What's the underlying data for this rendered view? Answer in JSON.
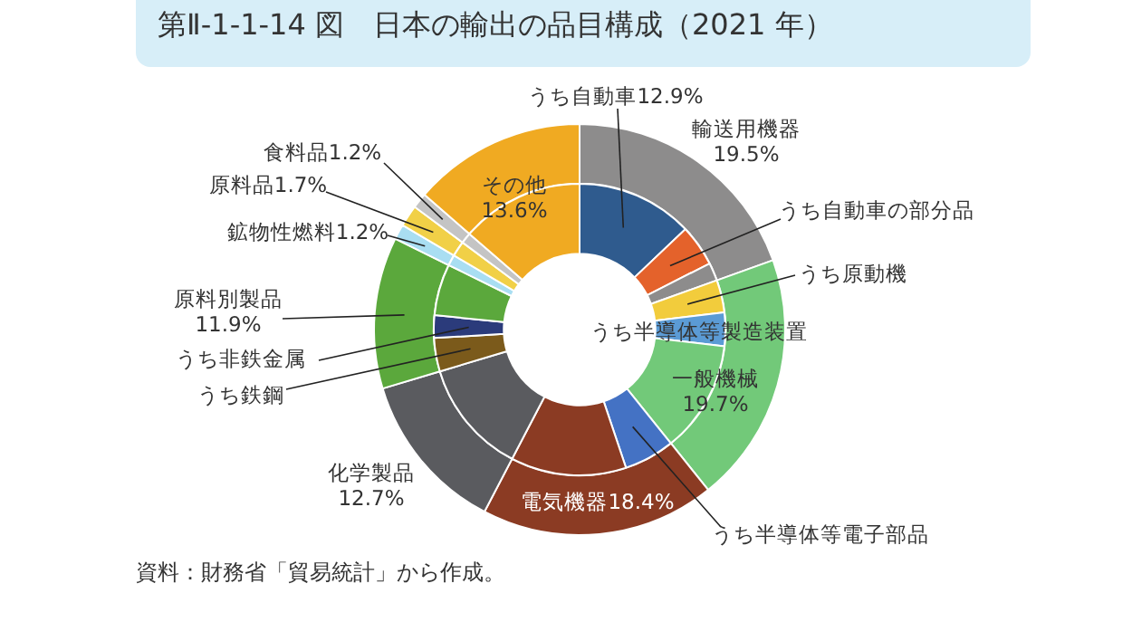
{
  "chart_data": [
    {
      "type": "donut",
      "title": "第Ⅱ-1-1-14 図　日本の輸出の品目構成（2021 年）",
      "annotations": [
        "資料：財務省「貿易統計」から作成。"
      ],
      "categories": [
        "輸送用機器",
        "一般機械",
        "電気機器",
        "化学製品",
        "原料別製品",
        "鉱物性燃料",
        "原料品",
        "食料品",
        "その他"
      ],
      "values": [
        19.5,
        19.7,
        18.4,
        12.7,
        11.9,
        1.2,
        1.7,
        1.2,
        13.6
      ],
      "value_labels": [
        "19.5%",
        "19.7%",
        "18.4%",
        "12.7%",
        "11.9%",
        "1.2%",
        "1.7%",
        "1.2%",
        "13.6%"
      ],
      "colors": [
        "#8d8c8c",
        "#72c979",
        "#8b3b23",
        "#5a5b5f",
        "#5ba83c",
        "#a9def2",
        "#f1d047",
        "#c4c4c4",
        "#f0aa22"
      ]
    },
    {
      "type": "donut",
      "categories": [
        "うち自動車",
        "うち自動車の部分品",
        null,
        "うち原動機",
        "うち半導体等製造装置",
        null,
        "うち半導体等電子部品",
        null,
        null,
        "うち鉄鋼",
        "うち非鉄金属",
        null,
        null,
        null,
        null,
        null
      ],
      "values": [
        12.9,
        4.6,
        2.0,
        3.6,
        3.7,
        12.4,
        5.6,
        12.8,
        12.7,
        3.7,
        2.5,
        5.7,
        1.2,
        1.7,
        1.2,
        13.6
      ],
      "value_labels": [
        "12.9%",
        null,
        null,
        null,
        null,
        null,
        null,
        null,
        null,
        null,
        null,
        null,
        null,
        null,
        null,
        null
      ],
      "colors": [
        "#2f5b8e",
        "#e4622b",
        "#8d8c8c",
        "#f2cc3c",
        "#5b9bd5",
        "#72c979",
        "#4472c4",
        "#8b3b23",
        "#5a5b5f",
        "#7b5a1b",
        "#2b3b7b",
        "#5ba83c",
        "#a9def2",
        "#f1d047",
        "#c4c4c4",
        "#f0aa22"
      ]
    }
  ]
}
